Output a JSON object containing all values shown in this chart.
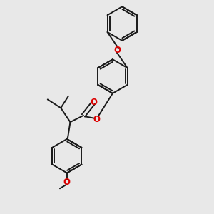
{
  "bg_color": "#e8e8e8",
  "bond_color": "#1a1a1a",
  "oxygen_color": "#dd0000",
  "bond_lw": 1.4,
  "dbo": 0.045,
  "r": 0.36,
  "figsize": [
    3.0,
    3.0
  ],
  "dpi": 100,
  "xlim": [
    0.0,
    3.0
  ],
  "ylim": [
    -1.4,
    3.1
  ]
}
